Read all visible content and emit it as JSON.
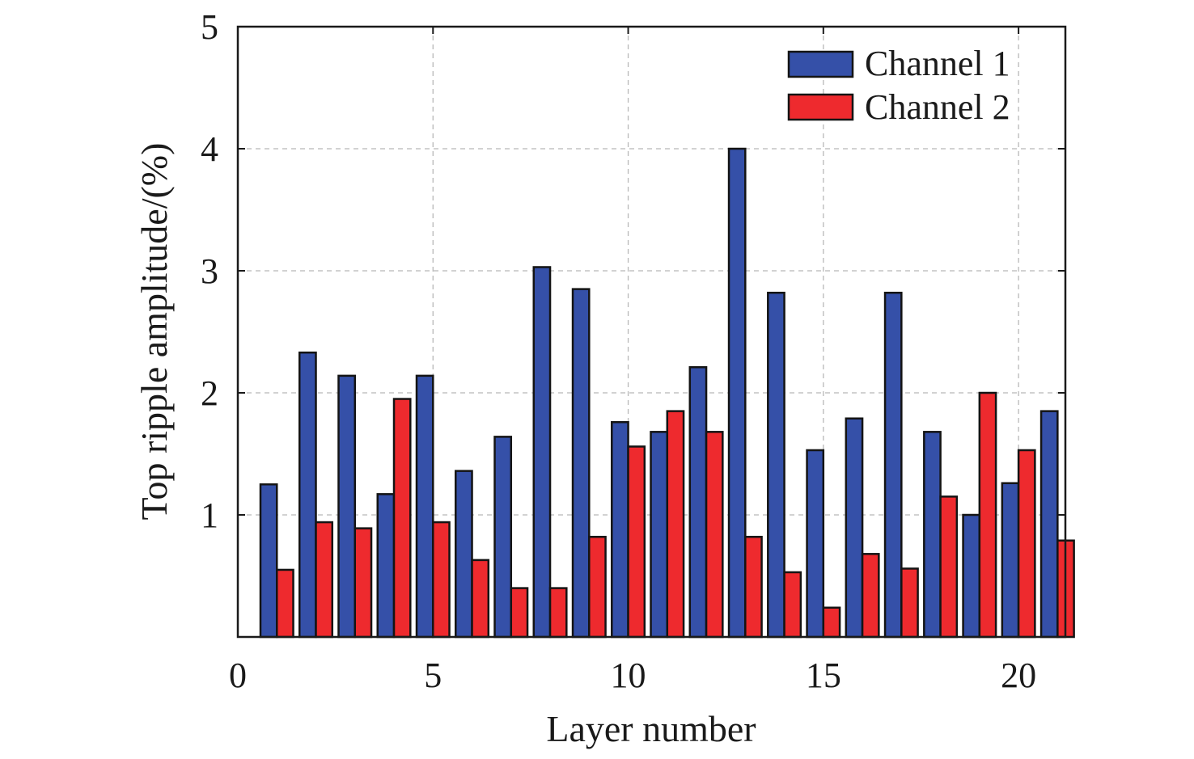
{
  "chart_data": {
    "type": "bar",
    "xlabel": "Layer number",
    "ylabel": "Top ripple amplitude/(%)",
    "xlim": [
      0,
      21.2
    ],
    "ylim": [
      0,
      5
    ],
    "xticks": [
      "0",
      "5",
      "10",
      "15",
      "20"
    ],
    "xtick_values": [
      0,
      5,
      10,
      15,
      20
    ],
    "yticks": [
      "1",
      "2",
      "3",
      "4",
      "5"
    ],
    "ytick_values": [
      1,
      2,
      3,
      4,
      5
    ],
    "grid": true,
    "legend_position": "top-right",
    "x": [
      1,
      2,
      3,
      4,
      5,
      6,
      7,
      8,
      9,
      10,
      11,
      12,
      13,
      14,
      15,
      16,
      17,
      18,
      19,
      20,
      21
    ],
    "series": [
      {
        "name": "Channel 1",
        "color": "#3550a8",
        "values": [
          1.25,
          2.33,
          2.14,
          1.17,
          2.14,
          1.36,
          1.64,
          3.03,
          2.85,
          1.76,
          1.68,
          2.21,
          4.0,
          2.82,
          1.53,
          1.79,
          2.82,
          1.68,
          1.0,
          1.26,
          1.85
        ]
      },
      {
        "name": "Channel 2",
        "color": "#ee2a2e",
        "values": [
          0.55,
          0.94,
          0.89,
          1.95,
          0.94,
          0.63,
          0.4,
          0.4,
          0.82,
          1.56,
          1.85,
          1.68,
          0.82,
          0.53,
          0.24,
          0.68,
          0.56,
          1.15,
          2.0,
          1.53,
          0.79
        ]
      }
    ]
  }
}
